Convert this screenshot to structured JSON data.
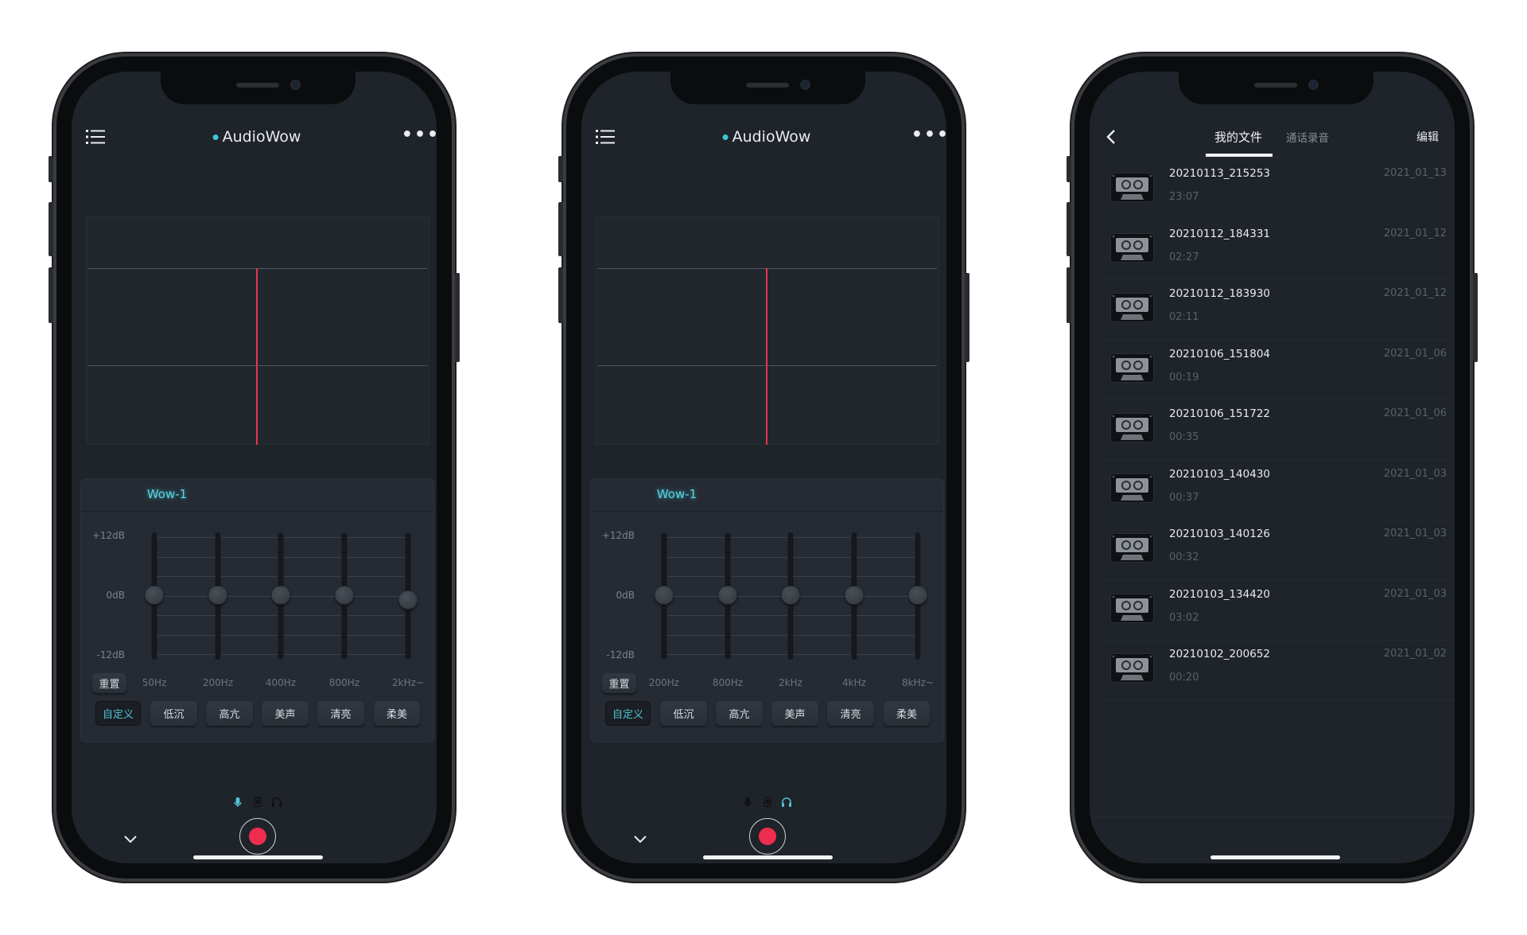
{
  "eq_screens": [
    {
      "app_title": "AudioWow",
      "preset_tab": "Wow-1",
      "db_labels": [
        "+12dB",
        "0dB",
        "-12dB"
      ],
      "bands": [
        {
          "label": "50Hz",
          "gain_db": 0
        },
        {
          "label": "200Hz",
          "gain_db": 0
        },
        {
          "label": "400Hz",
          "gain_db": 0
        },
        {
          "label": "800Hz",
          "gain_db": 0
        },
        {
          "label": "2kHz~",
          "gain_db": -1
        }
      ],
      "reset_label": "重置",
      "presets": [
        "自定义",
        "低沉",
        "高亢",
        "美声",
        "清亮",
        "柔美"
      ],
      "active_preset": 0,
      "active_source": "microphone"
    },
    {
      "app_title": "AudioWow",
      "preset_tab": "Wow-1",
      "db_labels": [
        "+12dB",
        "0dB",
        "-12dB"
      ],
      "bands": [
        {
          "label": "200Hz",
          "gain_db": 0
        },
        {
          "label": "800Hz",
          "gain_db": 0
        },
        {
          "label": "2kHz",
          "gain_db": 0
        },
        {
          "label": "4kHz",
          "gain_db": 0
        },
        {
          "label": "8kHz~",
          "gain_db": 0
        }
      ],
      "reset_label": "重置",
      "presets": [
        "自定义",
        "低沉",
        "高亢",
        "美声",
        "清亮",
        "柔美"
      ],
      "active_preset": 0,
      "active_source": "headphones"
    }
  ],
  "files_screen": {
    "tabs": [
      "我的文件",
      "通话录音"
    ],
    "active_tab": 0,
    "edit_label": "编辑",
    "files": [
      {
        "name": "20210113_215253",
        "duration": "23:07",
        "date": "2021_01_13"
      },
      {
        "name": "20210112_184331",
        "duration": "02:27",
        "date": "2021_01_12"
      },
      {
        "name": "20210112_183930",
        "duration": "02:11",
        "date": "2021_01_12"
      },
      {
        "name": "20210106_151804",
        "duration": "00:19",
        "date": "2021_01_06"
      },
      {
        "name": "20210106_151722",
        "duration": "00:35",
        "date": "2021_01_06"
      },
      {
        "name": "20210103_140430",
        "duration": "00:37",
        "date": "2021_01_03"
      },
      {
        "name": "20210103_140126",
        "duration": "00:32",
        "date": "2021_01_03"
      },
      {
        "name": "20210103_134420",
        "duration": "03:02",
        "date": "2021_01_03"
      },
      {
        "name": "20210102_200652",
        "duration": "00:20",
        "date": "2021_01_02"
      }
    ]
  },
  "colors": {
    "accent": "#4fc3d3",
    "record": "#ef2d4f",
    "screen_bg": "#1f232a"
  }
}
